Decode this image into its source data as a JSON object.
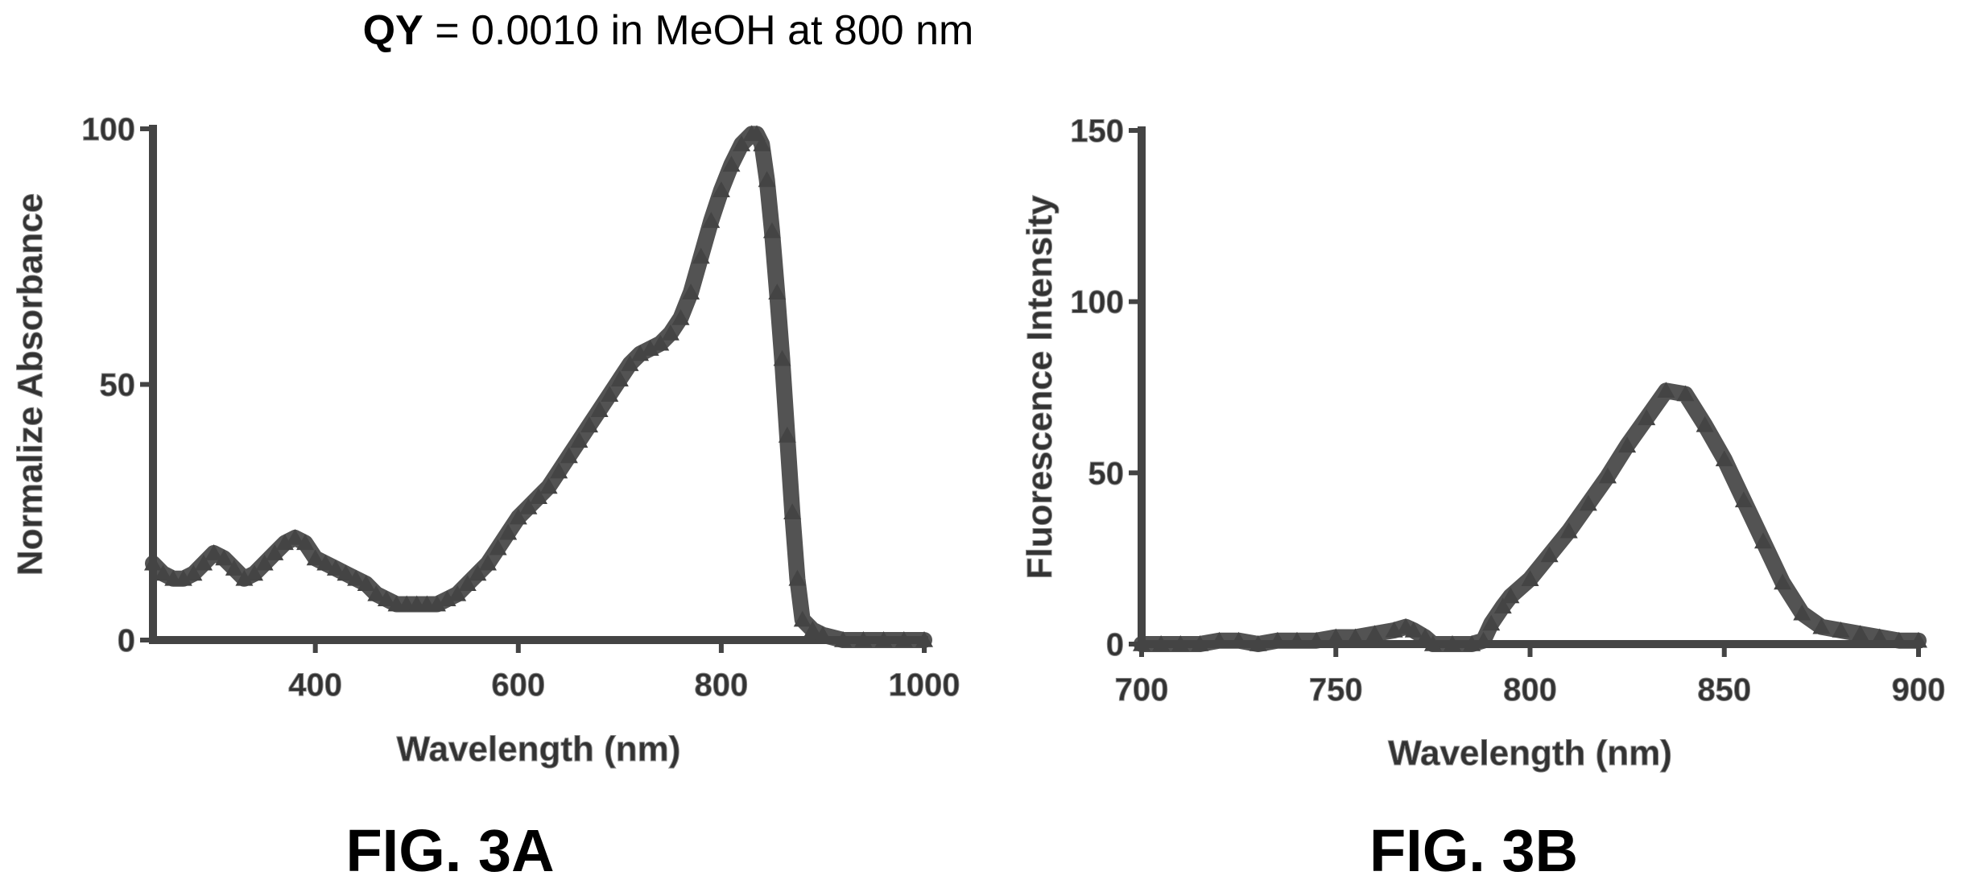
{
  "figure": {
    "title_bold": "QY",
    "title_rest": " = 0.0010 in MeOH at 800 nm"
  },
  "chart_data": [
    {
      "type": "scatter",
      "panel_label": "FIG. 3A",
      "xlabel": "Wavelength (nm)",
      "ylabel": "Normalize Absorbance",
      "xlim": [
        240,
        1000
      ],
      "ylim": [
        0,
        100
      ],
      "xticks": [
        400,
        600,
        800,
        1000
      ],
      "yticks": [
        0,
        50,
        100
      ],
      "grid": false,
      "legend": "none",
      "color": "#444444",
      "series": [
        {
          "marker": "triangle",
          "x": [
            240,
            250,
            260,
            270,
            280,
            290,
            300,
            310,
            320,
            330,
            340,
            350,
            360,
            370,
            380,
            390,
            400,
            410,
            420,
            430,
            440,
            450,
            460,
            470,
            480,
            490,
            500,
            510,
            520,
            530,
            540,
            550,
            560,
            570,
            580,
            590,
            600,
            610,
            620,
            630,
            640,
            650,
            660,
            670,
            680,
            690,
            700,
            710,
            720,
            730,
            740,
            750,
            760,
            770,
            780,
            790,
            800,
            810,
            820,
            830,
            835,
            840,
            845,
            850,
            855,
            860,
            865,
            870,
            875,
            880,
            890,
            900,
            920,
            940,
            960,
            980,
            1000
          ],
          "y": [
            15,
            13,
            12,
            12,
            13,
            15,
            17,
            16,
            14,
            12,
            13,
            15,
            17,
            19,
            20,
            19,
            16,
            15,
            14,
            13,
            12,
            11,
            9,
            8,
            7,
            7,
            7,
            7,
            7,
            8,
            9,
            11,
            13,
            15,
            18,
            21,
            24,
            26,
            28,
            30,
            33,
            36,
            39,
            42,
            45,
            48,
            51,
            54,
            56,
            57,
            58,
            60,
            63,
            68,
            75,
            82,
            88,
            93,
            97,
            99,
            99,
            97,
            90,
            80,
            68,
            55,
            40,
            25,
            12,
            4,
            2,
            1,
            0,
            0,
            0,
            0,
            0
          ]
        }
      ]
    },
    {
      "type": "scatter",
      "panel_label": "FIG. 3B",
      "xlabel": "Wavelength (nm)",
      "ylabel": "Fluorescence Intensity",
      "xlim": [
        700,
        900
      ],
      "ylim": [
        0,
        150
      ],
      "xticks": [
        700,
        750,
        800,
        850,
        900
      ],
      "yticks": [
        0,
        50,
        100,
        150
      ],
      "grid": false,
      "legend": "none",
      "color": "#444444",
      "series": [
        {
          "marker": "triangle",
          "x": [
            700,
            705,
            710,
            715,
            720,
            725,
            730,
            735,
            740,
            745,
            750,
            755,
            760,
            765,
            768,
            770,
            773,
            775,
            780,
            785,
            788,
            790,
            793,
            795,
            800,
            805,
            810,
            815,
            820,
            825,
            830,
            835,
            840,
            845,
            850,
            855,
            860,
            865,
            870,
            875,
            880,
            885,
            890,
            895,
            900
          ],
          "y": [
            0,
            0,
            0,
            0,
            1,
            1,
            0,
            1,
            1,
            1,
            2,
            2,
            3,
            4,
            5,
            4,
            2,
            0,
            0,
            0,
            1,
            6,
            11,
            14,
            19,
            26,
            33,
            41,
            49,
            58,
            66,
            74,
            73,
            64,
            54,
            42,
            30,
            18,
            9,
            5,
            4,
            3,
            2,
            1,
            1
          ]
        }
      ]
    }
  ]
}
